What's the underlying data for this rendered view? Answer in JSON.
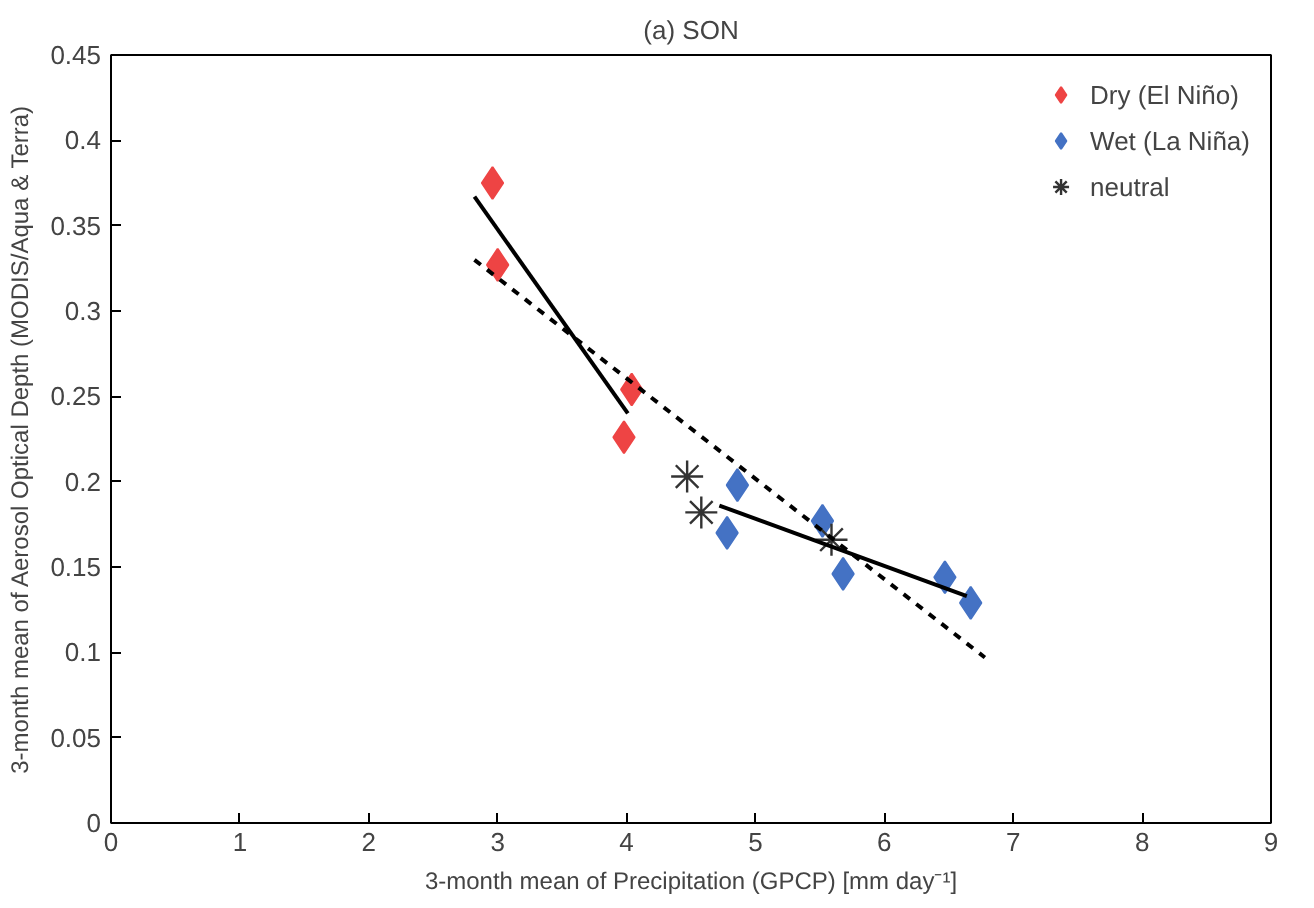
{
  "chart_data": {
    "type": "scatter",
    "title": "(a) SON",
    "xlabel": "3-month mean of Precipitation (GPCP) [mm day⁻¹]",
    "ylabel": "3-month mean of Aerosol Optical Depth (MODIS/Aqua & Terra)",
    "xlim": [
      0,
      9
    ],
    "ylim": [
      0,
      0.45
    ],
    "xticks": [
      0,
      1,
      2,
      3,
      4,
      5,
      6,
      7,
      8,
      9
    ],
    "yticks": [
      0,
      0.05,
      0.1,
      0.15,
      0.2,
      0.25,
      0.3,
      0.35,
      0.4,
      0.45
    ],
    "grid": false,
    "legend": "top right",
    "series": [
      {
        "name": "Dry (El Niño)",
        "color": "#ee4444",
        "marker": "diamond",
        "x": [
          2.96,
          3.0,
          4.04,
          3.98
        ],
        "values": [
          0.375,
          0.327,
          0.254,
          0.226
        ]
      },
      {
        "name": "Wet (La Niña)",
        "color": "#4472c4",
        "marker": "diamond",
        "x": [
          4.86,
          4.78,
          5.52,
          5.68,
          6.47,
          6.67
        ],
        "values": [
          0.198,
          0.17,
          0.177,
          0.146,
          0.144,
          0.129
        ]
      },
      {
        "name": "neutral",
        "color": "#333333",
        "marker": "cross",
        "x": [
          4.47,
          4.58,
          5.59
        ],
        "values": [
          0.203,
          0.182,
          0.166
        ]
      },
      {
        "type": "line",
        "color": "#000000",
        "line_style": "solid",
        "x": [
          2.82,
          4.01
        ],
        "values": [
          0.367,
          0.24
        ]
      },
      {
        "type": "line",
        "color": "#000000",
        "line_style": "solid",
        "x": [
          4.72,
          6.64
        ],
        "values": [
          0.186,
          0.133
        ]
      },
      {
        "type": "line",
        "color": "#000000",
        "line_style": "dashed",
        "x": [
          2.82,
          6.78
        ],
        "values": [
          0.33,
          0.097
        ]
      }
    ]
  }
}
